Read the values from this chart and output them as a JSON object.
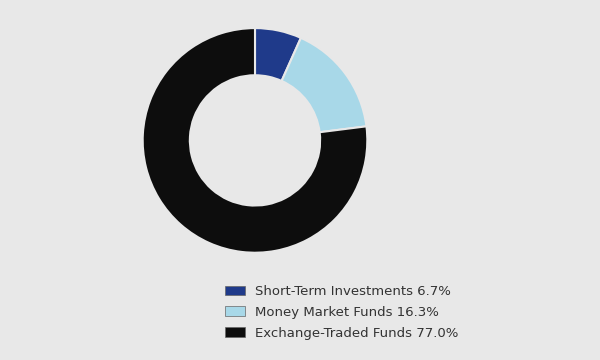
{
  "labels": [
    "Short-Term Investments 6.7%",
    "Money Market Funds 16.3%",
    "Exchange-Traded Funds 77.0%"
  ],
  "values": [
    6.7,
    16.3,
    77.0
  ],
  "colors": [
    "#1f3a8a",
    "#a8d8e8",
    "#0d0d0d"
  ],
  "background_color": "#e8e8e8",
  "wedge_edge_color": "#e8e8e8",
  "donut_hole_ratio": 0.58,
  "startangle": 90,
  "legend_fontsize": 9.5,
  "figsize": [
    6.0,
    3.6
  ],
  "dpi": 100
}
